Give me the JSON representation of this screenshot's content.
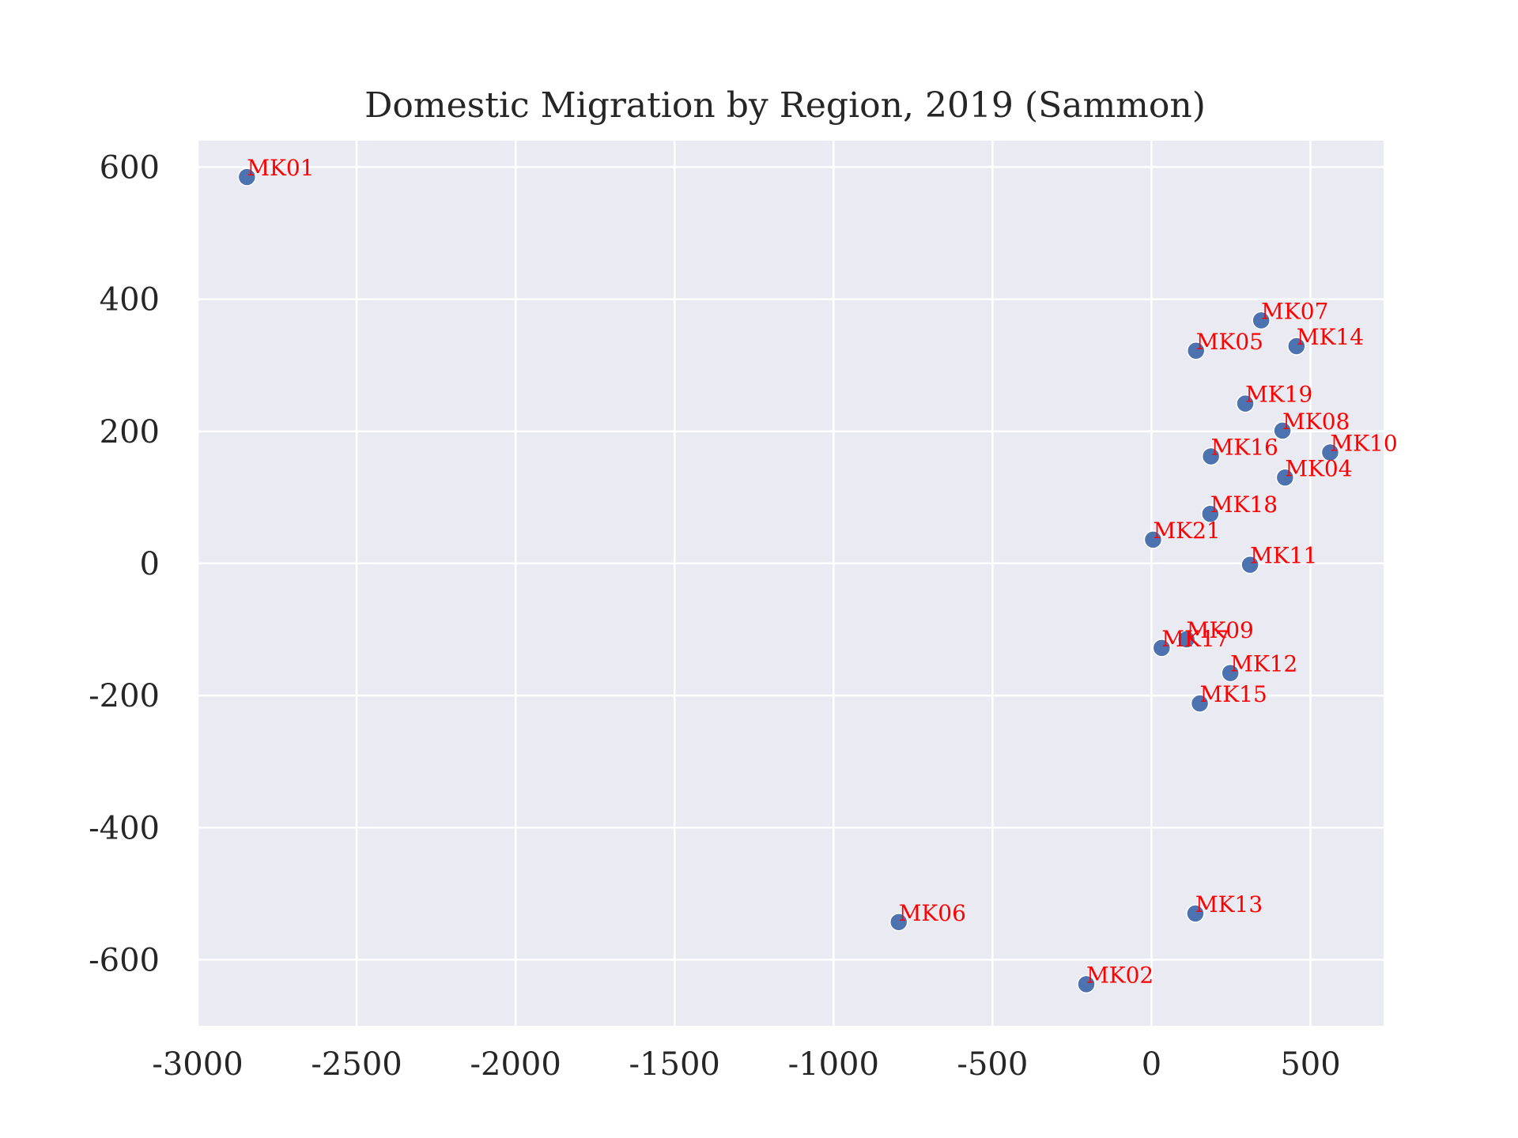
{
  "chart_data": {
    "type": "scatter",
    "title": "Domestic Migration by Region, 2019 (Sammon)",
    "xlabel": "",
    "ylabel": "",
    "xlim": [
      -3000,
      730
    ],
    "ylim": [
      -700,
      640
    ],
    "xticks": [
      -3000,
      -2500,
      -2000,
      -1500,
      -1000,
      -500,
      0,
      500
    ],
    "xtick_labels": [
      "-3000",
      "-2500",
      "-2000",
      "-1500",
      "-1000",
      "-500",
      "0",
      "500"
    ],
    "yticks": [
      -600,
      -400,
      -200,
      0,
      200,
      400,
      600
    ],
    "ytick_labels": [
      "-600",
      "-400",
      "-200",
      "0",
      "200",
      "400",
      "600"
    ],
    "grid": true,
    "colors": {
      "background": "#eaeaf2",
      "grid": "#ffffff",
      "point": "#4c72b0",
      "label": "#ff0000",
      "text": "#262626"
    },
    "points": [
      {
        "label": "MK01",
        "x": -2845,
        "y": 585
      },
      {
        "label": "MK02",
        "x": -205,
        "y": -637
      },
      {
        "label": "MK04",
        "x": 420,
        "y": 130
      },
      {
        "label": "MK05",
        "x": 140,
        "y": 322
      },
      {
        "label": "MK06",
        "x": -795,
        "y": -543
      },
      {
        "label": "MK07",
        "x": 345,
        "y": 368
      },
      {
        "label": "MK08",
        "x": 412,
        "y": 201
      },
      {
        "label": "MK09",
        "x": 110,
        "y": -115
      },
      {
        "label": "MK10",
        "x": 562,
        "y": 168
      },
      {
        "label": "MK11",
        "x": 310,
        "y": -2
      },
      {
        "label": "MK12",
        "x": 248,
        "y": -166
      },
      {
        "label": "MK13",
        "x": 138,
        "y": -530
      },
      {
        "label": "MK14",
        "x": 456,
        "y": 329
      },
      {
        "label": "MK15",
        "x": 152,
        "y": -212
      },
      {
        "label": "MK16",
        "x": 187,
        "y": 162
      },
      {
        "label": "MK17",
        "x": 32,
        "y": -128
      },
      {
        "label": "MK18",
        "x": 185,
        "y": 75
      },
      {
        "label": "MK19",
        "x": 295,
        "y": 242
      },
      {
        "label": "MK21",
        "x": 5,
        "y": 36
      }
    ]
  }
}
